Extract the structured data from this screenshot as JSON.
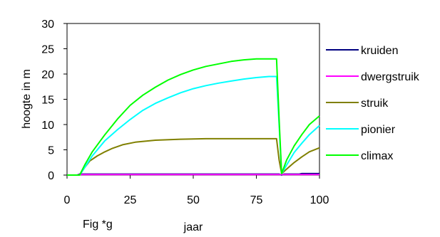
{
  "chart_data": {
    "type": "line",
    "title": "",
    "xlabel": "jaar",
    "ylabel": "hoogte in m",
    "caption": "Fig *g",
    "xlim": [
      0,
      100
    ],
    "ylim": [
      0,
      30
    ],
    "x_ticks": [
      0,
      25,
      50,
      75,
      100
    ],
    "y_ticks": [
      0,
      5,
      10,
      15,
      20,
      25,
      30
    ],
    "grid": false,
    "legend_position": "right",
    "series": [
      {
        "name": "kruiden",
        "color": "#000080",
        "points": [
          [
            0,
            0
          ],
          [
            4,
            0
          ],
          [
            5,
            0.2
          ],
          [
            84,
            0.2
          ],
          [
            85,
            0
          ],
          [
            86,
            0.2
          ],
          [
            92,
            0.2
          ],
          [
            93,
            0.3
          ],
          [
            100,
            0.3
          ]
        ]
      },
      {
        "name": "dwergstruik",
        "color": "#ff00ff",
        "points": [
          [
            0,
            0
          ],
          [
            4,
            0
          ],
          [
            5,
            0.1
          ],
          [
            100,
            0.1
          ]
        ]
      },
      {
        "name": "struik",
        "color": "#808000",
        "points": [
          [
            0,
            0
          ],
          [
            5,
            0
          ],
          [
            7,
            1.5
          ],
          [
            9,
            2.8
          ],
          [
            12,
            3.8
          ],
          [
            15,
            4.6
          ],
          [
            18,
            5.3
          ],
          [
            22,
            6.0
          ],
          [
            27,
            6.5
          ],
          [
            35,
            6.9
          ],
          [
            45,
            7.1
          ],
          [
            55,
            7.2
          ],
          [
            65,
            7.2
          ],
          [
            80,
            7.2
          ],
          [
            83,
            7.2
          ],
          [
            84,
            3.0
          ],
          [
            85,
            0.3
          ],
          [
            87,
            1.2
          ],
          [
            90,
            2.5
          ],
          [
            93,
            3.6
          ],
          [
            96,
            4.6
          ],
          [
            100,
            5.4
          ]
        ]
      },
      {
        "name": "pionier",
        "color": "#00ffff",
        "points": [
          [
            0,
            0
          ],
          [
            5,
            0
          ],
          [
            7,
            1.5
          ],
          [
            10,
            3.8
          ],
          [
            15,
            6.8
          ],
          [
            20,
            9.0
          ],
          [
            25,
            11.0
          ],
          [
            30,
            12.8
          ],
          [
            35,
            14.2
          ],
          [
            40,
            15.3
          ],
          [
            45,
            16.3
          ],
          [
            50,
            17.1
          ],
          [
            55,
            17.7
          ],
          [
            60,
            18.2
          ],
          [
            65,
            18.6
          ],
          [
            70,
            19.0
          ],
          [
            75,
            19.3
          ],
          [
            80,
            19.5
          ],
          [
            83,
            19.5
          ],
          [
            84,
            10.0
          ],
          [
            85,
            0.3
          ],
          [
            87,
            2.0
          ],
          [
            90,
            4.5
          ],
          [
            93,
            6.3
          ],
          [
            96,
            8.0
          ],
          [
            100,
            9.8
          ]
        ]
      },
      {
        "name": "climax",
        "color": "#00ff00",
        "points": [
          [
            0,
            0
          ],
          [
            5,
            0
          ],
          [
            7,
            2.0
          ],
          [
            10,
            4.6
          ],
          [
            15,
            8.0
          ],
          [
            20,
            11.1
          ],
          [
            25,
            13.8
          ],
          [
            30,
            15.8
          ],
          [
            35,
            17.4
          ],
          [
            40,
            18.8
          ],
          [
            45,
            19.9
          ],
          [
            50,
            20.8
          ],
          [
            55,
            21.5
          ],
          [
            60,
            22.0
          ],
          [
            65,
            22.5
          ],
          [
            70,
            22.8
          ],
          [
            75,
            23.0
          ],
          [
            80,
            23.0
          ],
          [
            83,
            23.0
          ],
          [
            84,
            11.0
          ],
          [
            85,
            0.3
          ],
          [
            87,
            3.0
          ],
          [
            90,
            5.8
          ],
          [
            93,
            8.0
          ],
          [
            96,
            10.0
          ],
          [
            100,
            11.7
          ]
        ]
      }
    ]
  }
}
